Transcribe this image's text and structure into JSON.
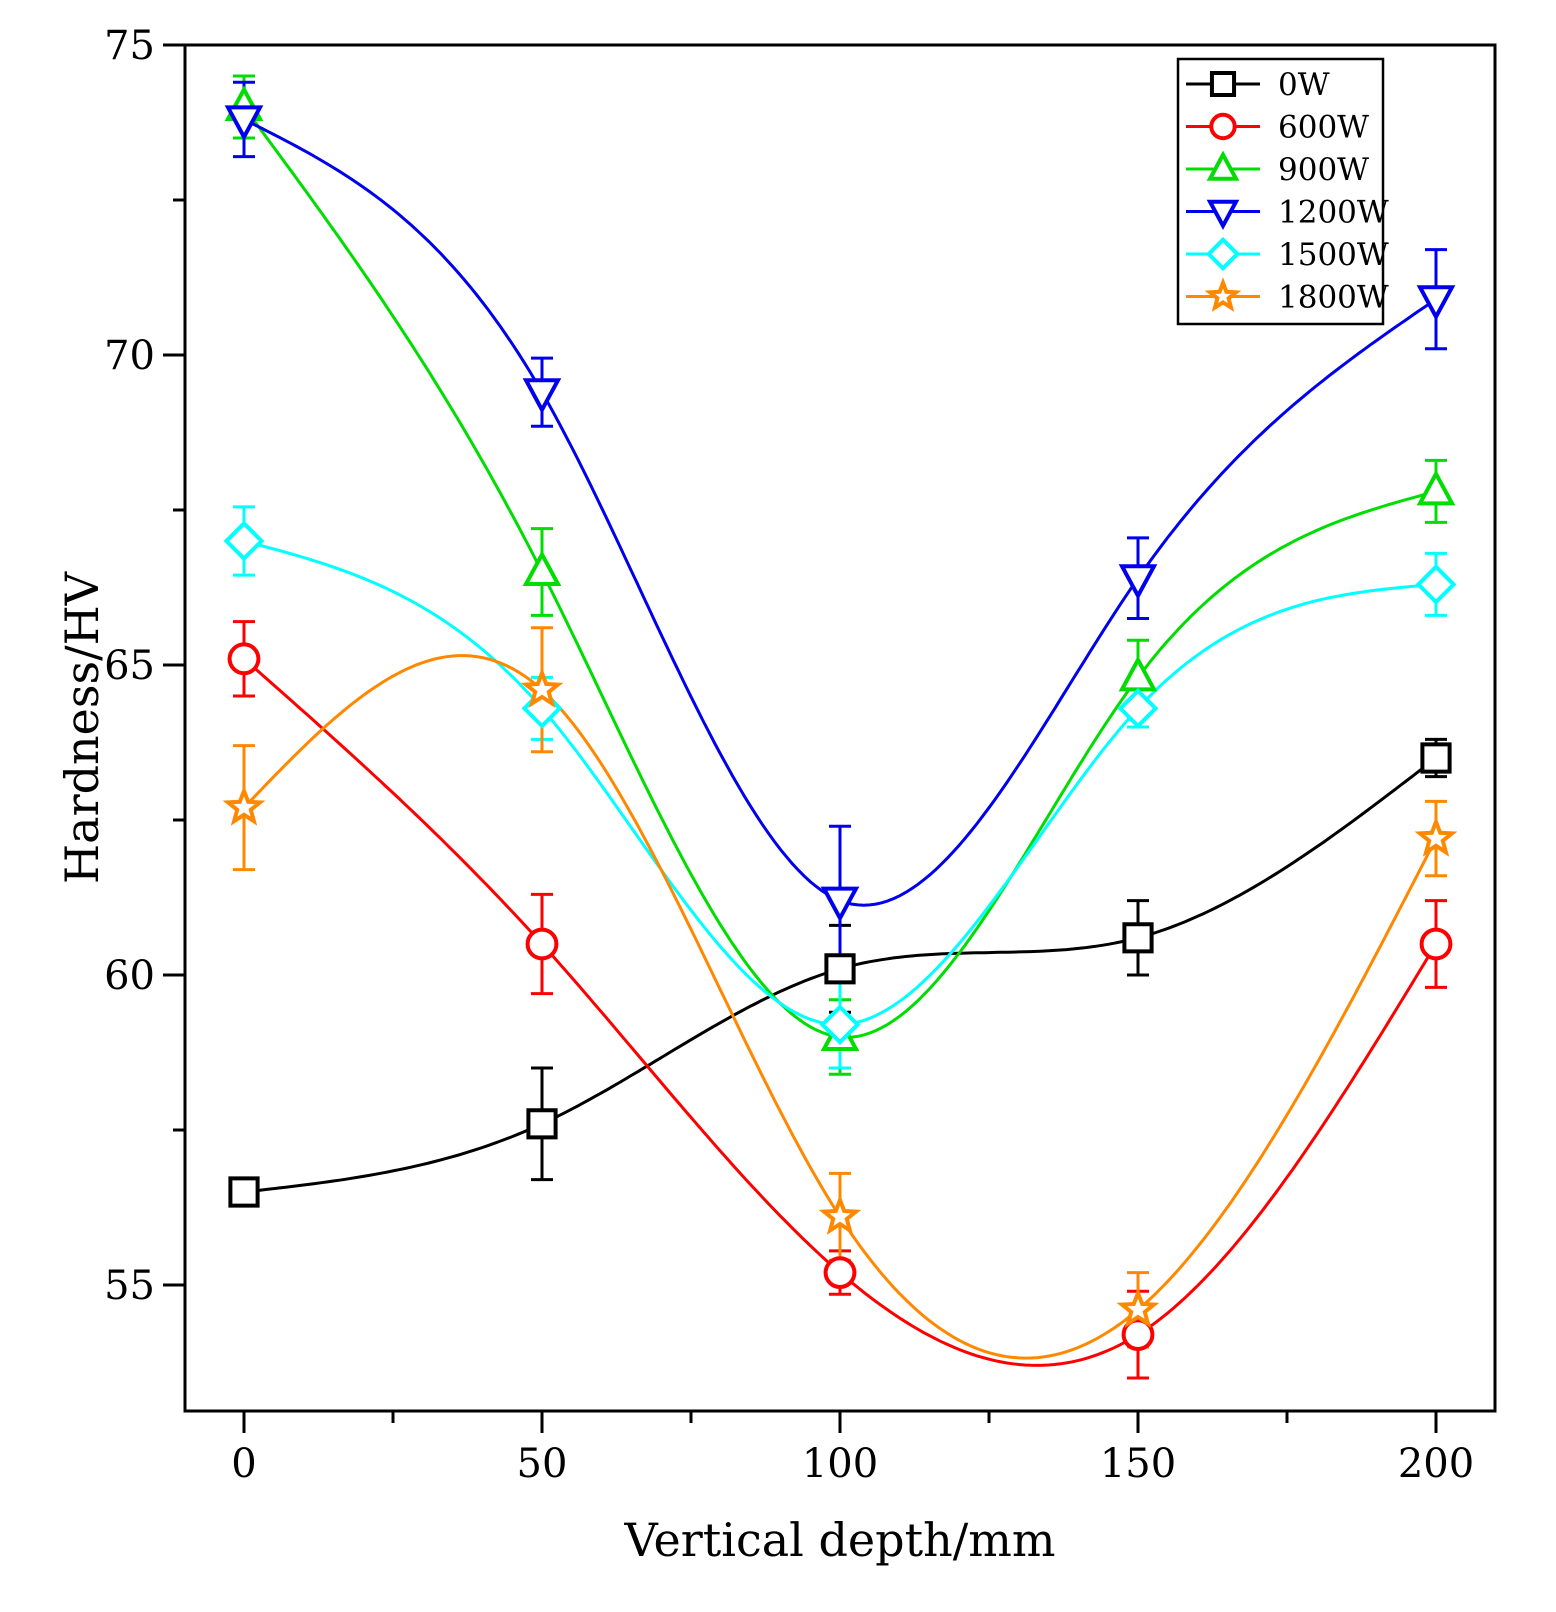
{
  "chart_data": {
    "type": "line",
    "title": "",
    "xlabel": "Vertical depth/mm",
    "ylabel": "Hardness/HV",
    "xlim": [
      -10,
      210
    ],
    "ylim": [
      53,
      75
    ],
    "xticks": [
      "0",
      "50",
      "100",
      "150",
      "200"
    ],
    "yticks": [
      "55",
      "60",
      "65",
      "70",
      "75"
    ],
    "legend_position": "top-right",
    "grid": false,
    "x": [
      0,
      50,
      100,
      150,
      200
    ],
    "series": [
      {
        "name": "0W",
        "color": "#000000",
        "marker": "square",
        "values": [
          56.5,
          57.6,
          60.1,
          60.6,
          63.5
        ],
        "errors": [
          0.1,
          0.9,
          0.7,
          0.6,
          0.3
        ]
      },
      {
        "name": "600W",
        "color": "#ff0000",
        "marker": "circle",
        "values": [
          65.1,
          60.5,
          55.2,
          54.2,
          60.5
        ],
        "errors": [
          0.6,
          0.8,
          0.35,
          0.7,
          0.7
        ]
      },
      {
        "name": "900W",
        "color": "#00dd00",
        "marker": "triangle-up",
        "values": [
          74.0,
          66.5,
          59.0,
          64.8,
          67.8
        ],
        "errors": [
          0.5,
          0.7,
          0.6,
          0.6,
          0.5
        ]
      },
      {
        "name": "1200W",
        "color": "#0000ee",
        "marker": "triangle-down",
        "values": [
          73.8,
          69.4,
          61.2,
          66.4,
          70.9
        ],
        "errors": [
          0.6,
          0.55,
          1.2,
          0.65,
          0.8
        ]
      },
      {
        "name": "1500W",
        "color": "#00ffff",
        "marker": "diamond",
        "values": [
          67.0,
          64.3,
          59.2,
          64.3,
          66.3
        ],
        "errors": [
          0.55,
          0.5,
          0.7,
          0.3,
          0.5
        ]
      },
      {
        "name": "1800W",
        "color": "#ff8800",
        "marker": "star",
        "values": [
          62.7,
          64.6,
          56.1,
          54.6,
          62.2
        ],
        "errors": [
          1.0,
          1.0,
          0.7,
          0.6,
          0.6
        ]
      }
    ]
  }
}
